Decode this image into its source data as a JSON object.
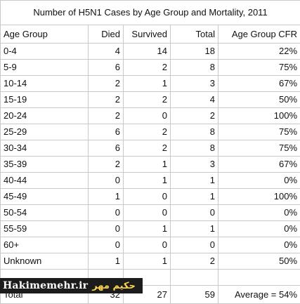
{
  "chart_data": {
    "type": "table",
    "title": "Number of H5N1 Cases by Age Group and Mortality, 2011",
    "columns": [
      "Age Group",
      "Died",
      "Survived",
      "Total",
      "Age Group CFR"
    ],
    "rows": [
      [
        "0-4",
        "4",
        "14",
        "18",
        "22%"
      ],
      [
        "5-9",
        "6",
        "2",
        "8",
        "75%"
      ],
      [
        "10-14",
        "2",
        "1",
        "3",
        "67%"
      ],
      [
        "15-19",
        "2",
        "2",
        "4",
        "50%"
      ],
      [
        "20-24",
        "2",
        "0",
        "2",
        "100%"
      ],
      [
        "25-29",
        "6",
        "2",
        "8",
        "75%"
      ],
      [
        "30-34",
        "6",
        "2",
        "8",
        "75%"
      ],
      [
        "35-39",
        "2",
        "1",
        "3",
        "67%"
      ],
      [
        "40-44",
        "0",
        "1",
        "1",
        "0%"
      ],
      [
        "45-49",
        "1",
        "0",
        "1",
        "100%"
      ],
      [
        "50-54",
        "0",
        "0",
        "0",
        "0%"
      ],
      [
        "55-59",
        "0",
        "1",
        "1",
        "0%"
      ],
      [
        "60+",
        "0",
        "0",
        "0",
        "0%"
      ],
      [
        "Unknown",
        "1",
        "1",
        "2",
        "50%"
      ]
    ],
    "total_row": [
      "Total",
      "32",
      "27",
      "59",
      "Average = 54%"
    ]
  },
  "watermark": {
    "text": "Hakimemehr.ir",
    "fa_text": "حکیم مهر"
  }
}
